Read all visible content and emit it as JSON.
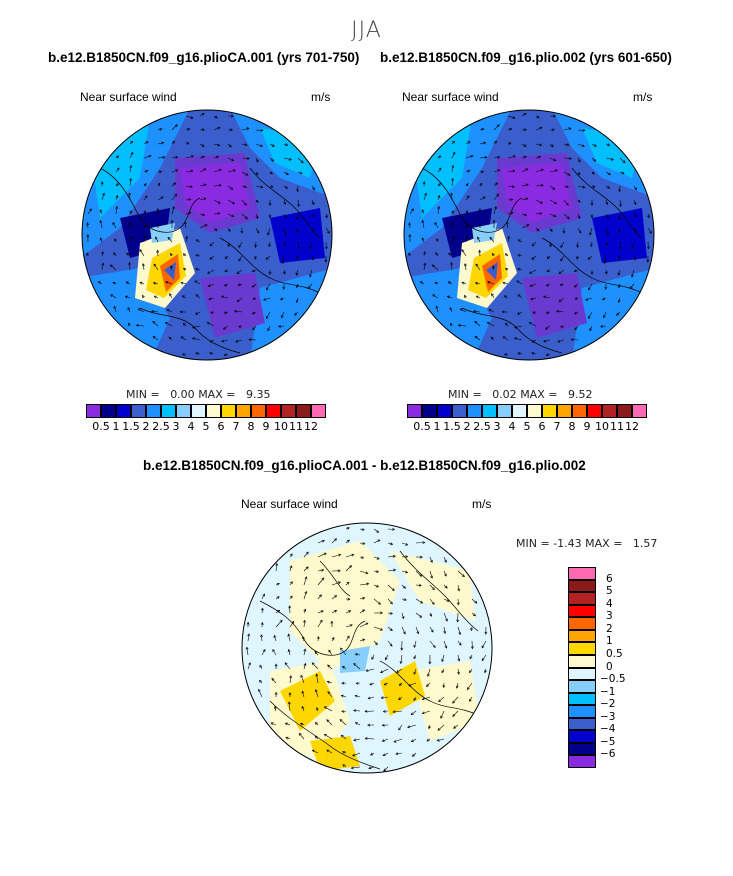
{
  "figure": {
    "season": "JJA"
  },
  "panels": {
    "left": {
      "title": "b.e12.B1850CN.f09_g16.plioCA.001 (yrs 701-750)",
      "variable": "Near surface wind",
      "units": "m/s",
      "min_label": "MIN =",
      "min_value": "0.00",
      "max_label": "MAX =",
      "max_value": "9.35"
    },
    "right": {
      "title": "b.e12.B1850CN.f09_g16.plio.002 (yrs 601-650)",
      "variable": "Near surface wind",
      "units": "m/s",
      "min_label": "MIN =",
      "min_value": "0.02",
      "max_label": "MAX =",
      "max_value": "9.52"
    },
    "diff": {
      "title": "b.e12.B1850CN.f09_g16.plioCA.001 - b.e12.B1850CN.f09_g16.plio.002",
      "variable": "Near surface wind",
      "units": "m/s",
      "min_label": "MIN =",
      "min_value": "-1.43",
      "max_label": "MAX =",
      "max_value": "1.57"
    }
  },
  "colorbars": {
    "abs": {
      "levels": [
        "0.5",
        "1",
        "1.5",
        "2",
        "2.5",
        "3",
        "4",
        "5",
        "6",
        "7",
        "8",
        "9",
        "10",
        "11",
        "12"
      ],
      "colors": [
        "#8a2be2",
        "#00008b",
        "#0000cd",
        "#3a5fcd",
        "#1e90ff",
        "#00bfff",
        "#87cefa",
        "#e0f6ff",
        "#fffacd",
        "#ffd700",
        "#ffa500",
        "#ff6600",
        "#ff0000",
        "#b22222",
        "#8b1a1a",
        "#ff69b4"
      ]
    },
    "diff": {
      "levels": [
        "6",
        "5",
        "4",
        "3",
        "2",
        "1",
        "0.5",
        "0",
        "-0.5",
        "-1",
        "-2",
        "-3",
        "-4",
        "-5",
        "-6"
      ],
      "colors": [
        "#ff69b4",
        "#8b1a1a",
        "#b22222",
        "#ff0000",
        "#ff6600",
        "#ffa500",
        "#ffd700",
        "#fffacd",
        "#e0f6ff",
        "#87cefa",
        "#00bfff",
        "#1e90ff",
        "#3a5fcd",
        "#0000cd",
        "#00008b",
        "#8a2be2"
      ]
    }
  },
  "chart_data": [
    {
      "type": "heatmap",
      "projection": "north-polar-stereographic",
      "title": "b.e12.B1850CN.f09_g16.plioCA.001 (yrs 701-750)",
      "subtitle": "Near surface wind",
      "units": "m/s",
      "min": 0.0,
      "max": 9.35,
      "contour_levels": [
        0.5,
        1,
        1.5,
        2,
        2.5,
        3,
        4,
        5,
        6,
        7,
        8,
        9,
        10,
        11,
        12
      ]
    },
    {
      "type": "heatmap",
      "projection": "north-polar-stereographic",
      "title": "b.e12.B1850CN.f09_g16.plio.002 (yrs 601-650)",
      "subtitle": "Near surface wind",
      "units": "m/s",
      "min": 0.02,
      "max": 9.52,
      "contour_levels": [
        0.5,
        1,
        1.5,
        2,
        2.5,
        3,
        4,
        5,
        6,
        7,
        8,
        9,
        10,
        11,
        12
      ]
    },
    {
      "type": "heatmap",
      "projection": "north-polar-stereographic",
      "title": "b.e12.B1850CN.f09_g16.plioCA.001 - b.e12.B1850CN.f09_g16.plio.002",
      "subtitle": "Near surface wind",
      "units": "m/s",
      "min": -1.43,
      "max": 1.57,
      "contour_levels": [
        -6,
        -5,
        -4,
        -3,
        -2,
        -1,
        -0.5,
        0,
        0.5,
        1,
        2,
        3,
        4,
        5,
        6
      ]
    }
  ]
}
